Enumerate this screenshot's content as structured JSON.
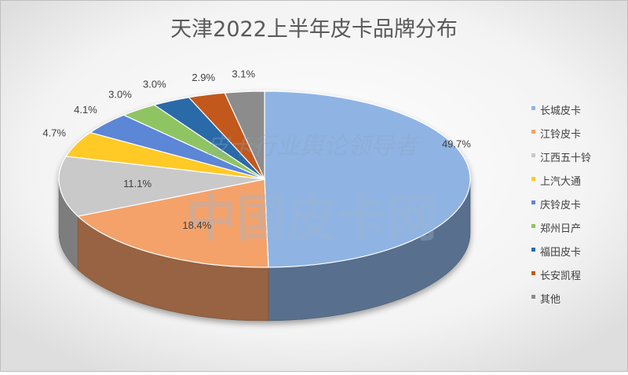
{
  "chart_data": {
    "type": "pie",
    "title": "天津2022上半年皮卡品牌分布",
    "categories": [
      "长城皮卡",
      "江铃皮卡",
      "江西五十铃",
      "上汽大通",
      "庆铃皮卡",
      "郑州日产",
      "福田皮卡",
      "长安凯程",
      "其他"
    ],
    "values": [
      49.7,
      18.4,
      11.1,
      4.7,
      4.1,
      3.0,
      3.0,
      2.9,
      3.1
    ],
    "labels": [
      "49.7%",
      "18.4%",
      "11.1%",
      "4.7%",
      "4.1%",
      "3.0%",
      "3.0%",
      "2.9%",
      "3.1%"
    ],
    "colors": [
      "#8fb4e3",
      "#f4a26b",
      "#c9c9c9",
      "#ffc926",
      "#5b86d6",
      "#8fc463",
      "#2c6aa8",
      "#c2591c",
      "#8c8c8c"
    ],
    "legend_position": "right",
    "grid": false
  },
  "watermark": {
    "main": "中国皮卡网",
    "sub": "皮卡行业舆论领导者"
  }
}
